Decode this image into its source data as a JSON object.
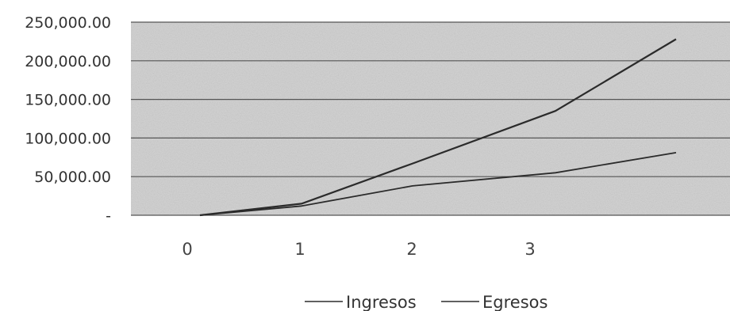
{
  "chart_data": {
    "type": "line",
    "title": "",
    "xlabel": "",
    "ylabel": "",
    "x": [
      0,
      1,
      2,
      3,
      4
    ],
    "x_tick_labels": [
      "0",
      "1",
      "2",
      "3"
    ],
    "y_tick_labels": [
      "250,000.00",
      "200,000.00",
      "150,000.00",
      "100,000.00",
      "50,000.00",
      "-"
    ],
    "ylim": [
      0,
      250000
    ],
    "grid": true,
    "legend_position": "bottom",
    "series": [
      {
        "name": "Ingresos",
        "values": [
          0,
          15000,
          67000,
          135000,
          228000
        ]
      },
      {
        "name": "Egresos",
        "values": [
          0,
          12000,
          38000,
          55000,
          81000
        ]
      }
    ],
    "colors": {
      "line": "#2b2b2b",
      "plot_background": "#d4d4d4",
      "grid": "#555555"
    }
  }
}
